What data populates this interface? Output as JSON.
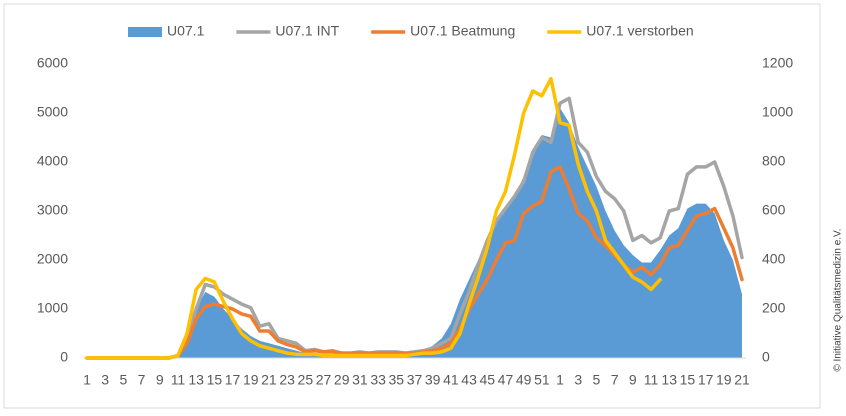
{
  "chart_data": {
    "type": "area_line",
    "categories": [
      "1",
      null,
      "3",
      null,
      "5",
      null,
      "7",
      null,
      "9",
      null,
      "11",
      null,
      "13",
      null,
      "15",
      null,
      "17",
      null,
      "19",
      null,
      "21",
      null,
      "23",
      null,
      "25",
      null,
      "27",
      null,
      "29",
      null,
      "31",
      null,
      "33",
      null,
      "35",
      null,
      "37",
      null,
      "39",
      null,
      "41",
      null,
      "43",
      null,
      "45",
      null,
      "47",
      null,
      "49",
      null,
      "51",
      null,
      "1",
      null,
      "3",
      null,
      "5",
      null,
      "7",
      null,
      "9",
      null,
      "11",
      null,
      "13",
      null,
      "15",
      null,
      "17",
      null,
      "19",
      null,
      "21"
    ],
    "series": [
      {
        "name": "U07.1",
        "type": "area",
        "color": "#5b9bd5",
        "axis": "y",
        "values": [
          0,
          0,
          0,
          0,
          0,
          0,
          0,
          0,
          0,
          0,
          100,
          500,
          1000,
          1350,
          1250,
          1000,
          800,
          600,
          450,
          350,
          300,
          250,
          200,
          150,
          100,
          80,
          70,
          60,
          60,
          60,
          60,
          70,
          80,
          80,
          90,
          100,
          120,
          150,
          250,
          400,
          700,
          1200,
          1600,
          2000,
          2400,
          2800,
          3100,
          3300,
          3700,
          4100,
          4550,
          4500,
          5100,
          4800,
          4300,
          3900,
          3500,
          3000,
          2600,
          2300,
          2100,
          1950,
          1950,
          2200,
          2500,
          2650,
          3050,
          3150,
          3150,
          2950,
          2400,
          2000,
          1300
        ]
      },
      {
        "name": "U07.1 INT",
        "type": "line",
        "color": "#a5a5a5",
        "axis": "y2",
        "values": [
          0,
          0,
          0,
          0,
          0,
          0,
          0,
          0,
          0,
          0,
          10,
          80,
          200,
          300,
          290,
          260,
          240,
          220,
          205,
          130,
          140,
          80,
          70,
          60,
          30,
          35,
          25,
          30,
          20,
          20,
          25,
          20,
          25,
          25,
          25,
          20,
          25,
          30,
          40,
          60,
          80,
          180,
          270,
          380,
          480,
          560,
          610,
          660,
          720,
          840,
          900,
          880,
          1040,
          1060,
          880,
          840,
          740,
          680,
          650,
          600,
          480,
          500,
          470,
          490,
          600,
          610,
          750,
          780,
          780,
          800,
          700,
          580,
          410
        ]
      },
      {
        "name": "U07.1 Beatmung",
        "type": "line",
        "color": "#ed7d31",
        "axis": "y2",
        "values": [
          0,
          0,
          0,
          0,
          0,
          0,
          0,
          0,
          0,
          0,
          10,
          60,
          160,
          210,
          220,
          210,
          200,
          180,
          170,
          110,
          110,
          70,
          55,
          45,
          25,
          30,
          25,
          25,
          20,
          20,
          20,
          20,
          20,
          20,
          20,
          20,
          20,
          25,
          30,
          40,
          60,
          120,
          200,
          260,
          320,
          400,
          470,
          480,
          590,
          620,
          640,
          760,
          780,
          690,
          590,
          560,
          490,
          460,
          420,
          380,
          350,
          370,
          340,
          380,
          450,
          460,
          520,
          580,
          590,
          610,
          530,
          450,
          320
        ]
      },
      {
        "name": "U07.1 verstorben",
        "type": "line",
        "color": "#ffc000",
        "axis": "y2",
        "values": [
          0,
          0,
          0,
          0,
          0,
          0,
          0,
          0,
          0,
          0,
          10,
          100,
          280,
          325,
          310,
          230,
          160,
          100,
          70,
          50,
          40,
          30,
          20,
          15,
          15,
          15,
          10,
          10,
          10,
          10,
          10,
          10,
          10,
          10,
          10,
          10,
          15,
          20,
          20,
          25,
          40,
          100,
          220,
          330,
          450,
          600,
          680,
          830,
          1000,
          1090,
          1070,
          1140,
          960,
          950,
          790,
          680,
          600,
          480,
          430,
          380,
          330,
          310,
          280,
          320,
          null,
          null,
          null,
          null,
          null,
          null,
          null,
          null,
          null
        ]
      }
    ],
    "ylim": [
      0,
      6000
    ],
    "yticks": [
      0,
      1000,
      2000,
      3000,
      4000,
      5000,
      6000
    ],
    "y2lim": [
      0,
      1200
    ],
    "y2ticks": [
      0,
      200,
      400,
      600,
      800,
      1000,
      1200
    ],
    "grid": false,
    "legend": "top",
    "source_note": "© Initiative Qualitätsmedizin e.V."
  }
}
